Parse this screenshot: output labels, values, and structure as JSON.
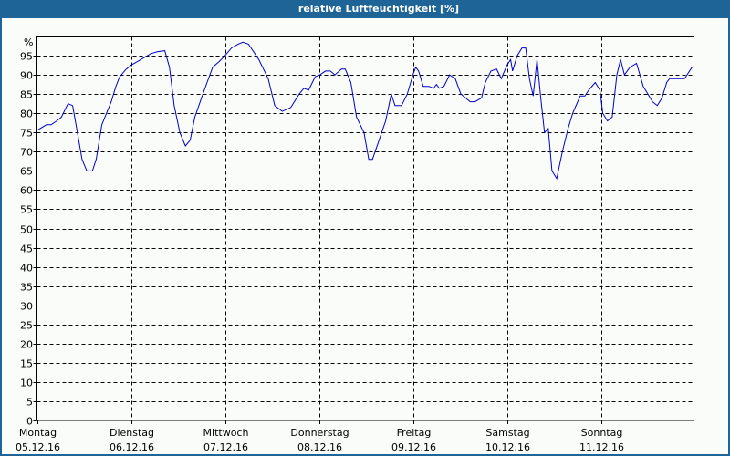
{
  "window": {
    "title": "relative Luftfeuchtigkeit [%]",
    "title_bar_color": "#1e6496"
  },
  "chart_data": {
    "type": "line",
    "title": "relative Luftfeuchtigkeit [%]",
    "xlabel": "",
    "ylabel": "%",
    "ylim": [
      0,
      100
    ],
    "y_ticks": [
      0,
      5,
      10,
      15,
      20,
      25,
      30,
      35,
      40,
      45,
      50,
      55,
      60,
      65,
      70,
      75,
      80,
      85,
      90,
      95
    ],
    "grid": true,
    "grid_style": "dashed",
    "line_color": "#0000c8",
    "x_days": [
      {
        "day": "Montag",
        "date": "05.12.16"
      },
      {
        "day": "Dienstag",
        "date": "06.12.16"
      },
      {
        "day": "Mittwoch",
        "date": "07.12.16"
      },
      {
        "day": "Donnerstag",
        "date": "08.12.16"
      },
      {
        "day": "Freitag",
        "date": "09.12.16"
      },
      {
        "day": "Samstag",
        "date": "10.12.16"
      },
      {
        "day": "Sonntag",
        "date": "11.12.16"
      }
    ],
    "x_range_days": [
      0,
      7
    ],
    "series": [
      {
        "name": "relative Luftfeuchtigkeit",
        "x_days": [
          0.0,
          0.1,
          0.15,
          0.21,
          0.26,
          0.33,
          0.38,
          0.43,
          0.48,
          0.53,
          0.59,
          0.63,
          0.69,
          0.74,
          0.79,
          0.84,
          0.88,
          0.95,
          1.0,
          1.07,
          1.14,
          1.21,
          1.28,
          1.36,
          1.41,
          1.46,
          1.52,
          1.58,
          1.63,
          1.68,
          1.75,
          1.81,
          1.87,
          1.94,
          2.0,
          2.07,
          2.14,
          2.19,
          2.25,
          2.36,
          2.46,
          2.53,
          2.61,
          2.7,
          2.79,
          2.84,
          2.89,
          2.96,
          3.01,
          3.07,
          3.12,
          3.17,
          3.24,
          3.28,
          3.34,
          3.4,
          3.48,
          3.53,
          3.57,
          3.64,
          3.71,
          3.77,
          3.81,
          3.88,
          3.94,
          4.0,
          4.03,
          4.06,
          4.11,
          4.17,
          4.22,
          4.25,
          4.28,
          4.33,
          4.39,
          4.45,
          4.51,
          4.56,
          4.61,
          4.66,
          4.73,
          4.77,
          4.83,
          4.89,
          4.94,
          5.0,
          5.04,
          5.06,
          5.11,
          5.16,
          5.2,
          5.24,
          5.28,
          5.32,
          5.36,
          5.4,
          5.44,
          5.48,
          5.53,
          5.59,
          5.65,
          5.7,
          5.78,
          5.83,
          5.87,
          5.94,
          5.99,
          6.02,
          6.07,
          6.12,
          6.17,
          6.21,
          6.25,
          6.31,
          6.38,
          6.45,
          6.5,
          6.55,
          6.6,
          6.65,
          6.7,
          6.73,
          6.82,
          6.89,
          6.97
        ],
        "values": [
          75.5,
          77,
          77,
          78,
          79,
          82.5,
          82,
          75,
          68,
          65,
          65,
          68,
          77,
          80,
          83,
          87,
          89.5,
          91.5,
          92.5,
          93.5,
          94.5,
          95.5,
          96,
          96.3,
          92,
          82,
          75,
          71.5,
          73,
          79,
          84,
          88,
          92,
          93.5,
          95,
          97,
          98,
          98.5,
          98,
          94,
          89,
          82,
          80.5,
          81.5,
          85,
          86.5,
          86,
          89.5,
          90,
          91,
          91,
          90,
          91.5,
          91.5,
          88,
          79,
          75,
          68,
          68,
          73,
          78,
          85,
          82,
          82,
          85,
          90,
          92,
          91,
          87,
          87,
          86.5,
          87.5,
          86.5,
          87,
          90,
          89,
          85,
          84,
          83,
          83,
          84,
          88,
          91,
          91.5,
          89,
          92.5,
          94,
          91,
          95,
          97,
          97,
          89,
          84.5,
          94,
          84,
          75,
          76,
          65,
          63,
          70,
          76,
          80,
          84.5,
          84.5,
          86,
          88,
          86,
          80,
          78,
          79,
          90,
          94,
          90,
          92,
          93,
          87,
          85,
          83,
          82,
          84,
          88,
          89,
          89,
          89,
          92
        ]
      }
    ]
  }
}
